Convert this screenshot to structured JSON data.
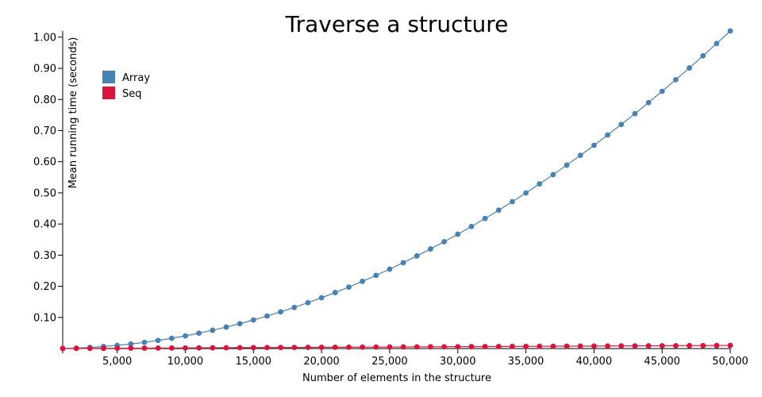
{
  "chart_data": {
    "type": "line",
    "title": "Traverse a structure",
    "xlabel": "Number of elements in the structure",
    "ylabel": "Mean running time (seconds)",
    "xlim": [
      1000,
      50000
    ],
    "ylim": [
      0,
      1.02
    ],
    "x_ticks": [
      5000,
      10000,
      15000,
      20000,
      25000,
      30000,
      35000,
      40000,
      45000,
      50000
    ],
    "x_tick_labels": [
      "5,000",
      "10,000",
      "15,000",
      "20,000",
      "25,000",
      "30,000",
      "35,000",
      "40,000",
      "45,000",
      "50,000"
    ],
    "y_ticks": [
      0.1,
      0.2,
      0.3,
      0.4,
      0.5,
      0.6,
      0.7,
      0.8,
      0.9,
      1.0
    ],
    "y_tick_labels": [
      "0.10",
      "0.20",
      "0.30",
      "0.40",
      "0.50",
      "0.60",
      "0.70",
      "0.80",
      "0.90",
      "1.00"
    ],
    "grid": false,
    "legend_position": "top-left",
    "x": [
      1000,
      2000,
      3000,
      4000,
      5000,
      6000,
      7000,
      8000,
      9000,
      10000,
      11000,
      12000,
      13000,
      14000,
      15000,
      16000,
      17000,
      18000,
      19000,
      20000,
      21000,
      22000,
      23000,
      24000,
      25000,
      26000,
      27000,
      28000,
      29000,
      30000,
      31000,
      32000,
      33000,
      34000,
      35000,
      36000,
      37000,
      38000,
      39000,
      40000,
      41000,
      42000,
      43000,
      44000,
      45000,
      46000,
      47000,
      48000,
      49000,
      50000
    ],
    "series": [
      {
        "name": "Array",
        "color": "#4682b4",
        "values": [
          0.0004,
          0.0016,
          0.0037,
          0.0065,
          0.0102,
          0.0147,
          0.02,
          0.0261,
          0.0331,
          0.0408,
          0.0494,
          0.0588,
          0.069,
          0.08,
          0.0918,
          0.1045,
          0.1179,
          0.1322,
          0.1473,
          0.1632,
          0.1799,
          0.1975,
          0.2159,
          0.235,
          0.255,
          0.2758,
          0.2975,
          0.3199,
          0.3432,
          0.3672,
          0.3921,
          0.4178,
          0.4444,
          0.4717,
          0.4998,
          0.5288,
          0.5586,
          0.5892,
          0.6206,
          0.6528,
          0.6859,
          0.7198,
          0.7544,
          0.7899,
          0.8262,
          0.8634,
          0.9013,
          0.9401,
          0.9797,
          1.02
        ]
      },
      {
        "name": "Seq",
        "color": "#dc143c",
        "values": [
          0.0002,
          0.0004,
          0.0006,
          0.0008,
          0.001,
          0.0012,
          0.0014,
          0.0016,
          0.0018,
          0.002,
          0.0022,
          0.0024,
          0.0026,
          0.0028,
          0.003,
          0.0032,
          0.0034,
          0.0036,
          0.0038,
          0.004,
          0.0042,
          0.0044,
          0.0046,
          0.0048,
          0.005,
          0.0052,
          0.0054,
          0.0056,
          0.0058,
          0.006,
          0.0062,
          0.0064,
          0.0066,
          0.0068,
          0.007,
          0.0072,
          0.0074,
          0.0076,
          0.0078,
          0.008,
          0.0082,
          0.0084,
          0.0086,
          0.0088,
          0.009,
          0.0092,
          0.0094,
          0.0096,
          0.0098,
          0.01
        ]
      }
    ]
  }
}
